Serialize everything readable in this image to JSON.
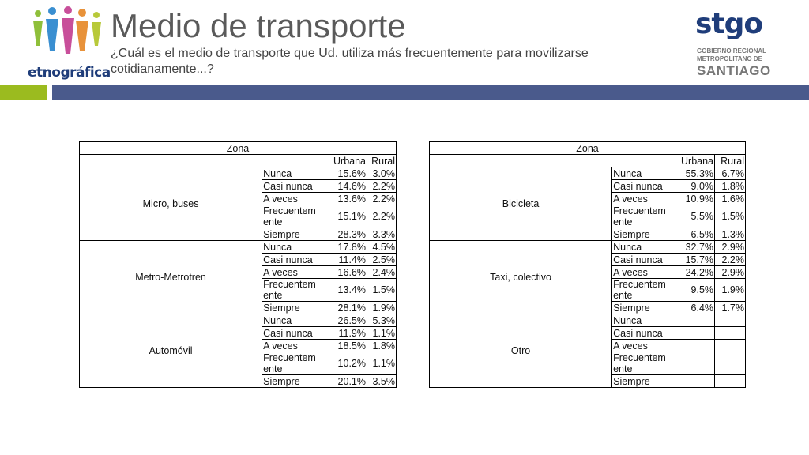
{
  "header": {
    "title": "Medio de transporte",
    "subtitle": "¿Cuál es el medio de transporte que Ud. utiliza más frecuentemente para movilizarse cotidianamente...?",
    "left_logo_text": "etnográfica",
    "right_logo": {
      "brand": "stgo",
      "line1": "GOBIERNO REGIONAL",
      "line2": "METROPOLITANO DE",
      "line3": "SANTIAGO"
    }
  },
  "colors": {
    "green_band": "#9bbb1f",
    "blue_band": "#4a5a8c",
    "logo_blue": "#1f3d7a"
  },
  "tables": {
    "zona_label": "Zona",
    "col_urbana": "Urbana",
    "col_rural": "Rural",
    "left": {
      "groups": [
        {
          "name": "Micro, buses",
          "rows": [
            {
              "cat": "Nunca",
              "urbana": "15.6%",
              "rural": "3.0%"
            },
            {
              "cat": "Casi nunca",
              "urbana": "14.6%",
              "rural": "2.2%"
            },
            {
              "cat": "A veces",
              "urbana": "13.6%",
              "rural": "2.2%"
            },
            {
              "cat": "Frecuentem ente",
              "urbana": "15.1%",
              "rural": "2.2%"
            },
            {
              "cat": "Siempre",
              "urbana": "28.3%",
              "rural": "3.3%"
            }
          ]
        },
        {
          "name": "Metro-Metrotren",
          "rows": [
            {
              "cat": "Nunca",
              "urbana": "17.8%",
              "rural": "4.5%"
            },
            {
              "cat": "Casi nunca",
              "urbana": "11.4%",
              "rural": "2.5%"
            },
            {
              "cat": "A veces",
              "urbana": "16.6%",
              "rural": "2.4%"
            },
            {
              "cat": "Frecuentem ente",
              "urbana": "13.4%",
              "rural": "1.5%"
            },
            {
              "cat": "Siempre",
              "urbana": "28.1%",
              "rural": "1.9%"
            }
          ]
        },
        {
          "name": "Automóvil",
          "rows": [
            {
              "cat": "Nunca",
              "urbana": "26.5%",
              "rural": "5.3%"
            },
            {
              "cat": "Casi nunca",
              "urbana": "11.9%",
              "rural": "1.1%"
            },
            {
              "cat": "A veces",
              "urbana": "18.5%",
              "rural": "1.8%"
            },
            {
              "cat": "Frecuentem ente",
              "urbana": "10.2%",
              "rural": "1.1%"
            },
            {
              "cat": "Siempre",
              "urbana": "20.1%",
              "rural": "3.5%"
            }
          ]
        }
      ]
    },
    "right": {
      "groups": [
        {
          "name": "Bicicleta",
          "rows": [
            {
              "cat": "Nunca",
              "urbana": "55.3%",
              "rural": "6.7%"
            },
            {
              "cat": "Casi nunca",
              "urbana": "9.0%",
              "rural": "1.8%"
            },
            {
              "cat": "A veces",
              "urbana": "10.9%",
              "rural": "1.6%"
            },
            {
              "cat": "Frecuentem ente",
              "urbana": "5.5%",
              "rural": "1.5%"
            },
            {
              "cat": "Siempre",
              "urbana": "6.5%",
              "rural": "1.3%"
            }
          ]
        },
        {
          "name": "Taxi, colectivo",
          "rows": [
            {
              "cat": "Nunca",
              "urbana": "32.7%",
              "rural": "2.9%"
            },
            {
              "cat": "Casi nunca",
              "urbana": "15.7%",
              "rural": "2.2%"
            },
            {
              "cat": "A veces",
              "urbana": "24.2%",
              "rural": "2.9%"
            },
            {
              "cat": "Frecuentem ente",
              "urbana": "9.5%",
              "rural": "1.9%"
            },
            {
              "cat": "Siempre",
              "urbana": "6.4%",
              "rural": "1.7%"
            }
          ]
        },
        {
          "name": "Otro",
          "rows": [
            {
              "cat": "Nunca",
              "urbana": "",
              "rural": ""
            },
            {
              "cat": "Casi nunca",
              "urbana": "",
              "rural": ""
            },
            {
              "cat": "A veces",
              "urbana": "",
              "rural": ""
            },
            {
              "cat": "Frecuentem ente",
              "urbana": "",
              "rural": ""
            },
            {
              "cat": "Siempre",
              "urbana": "",
              "rural": ""
            }
          ]
        }
      ]
    }
  }
}
